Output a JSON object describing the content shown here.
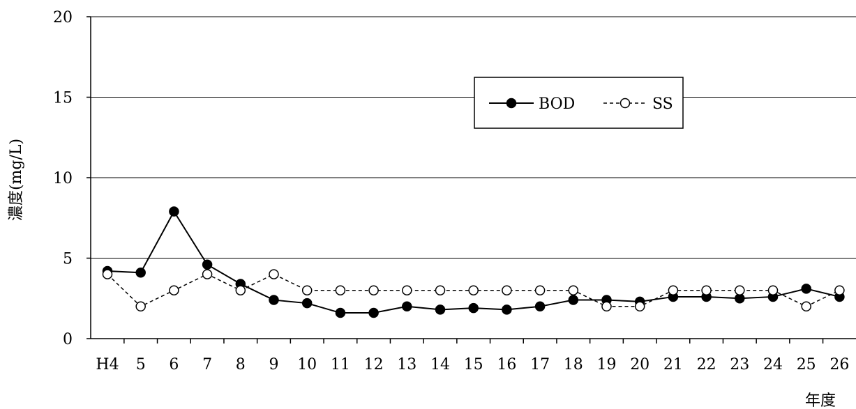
{
  "chart_data": {
    "type": "line",
    "categories": [
      "H4",
      "5",
      "6",
      "7",
      "8",
      "9",
      "10",
      "11",
      "12",
      "13",
      "14",
      "15",
      "16",
      "17",
      "18",
      "19",
      "20",
      "21",
      "22",
      "23",
      "24",
      "25",
      "26"
    ],
    "series": [
      {
        "name": "BOD",
        "color": "#000000",
        "line_style": "solid",
        "marker": "filled-circle",
        "values": [
          4.2,
          4.1,
          7.9,
          4.6,
          3.4,
          2.4,
          2.2,
          1.6,
          1.6,
          2.0,
          1.8,
          1.9,
          1.8,
          2.0,
          2.4,
          2.4,
          2.3,
          2.6,
          2.6,
          2.5,
          2.6,
          3.1,
          2.6
        ]
      },
      {
        "name": "SS",
        "color": "#000000",
        "line_style": "dashed",
        "marker": "open-circle",
        "values": [
          4.0,
          2.0,
          3.0,
          4.0,
          3.0,
          4.0,
          3.0,
          3.0,
          3.0,
          3.0,
          3.0,
          3.0,
          3.0,
          3.0,
          3.0,
          2.0,
          2.0,
          3.0,
          3.0,
          3.0,
          3.0,
          2.0,
          3.0
        ]
      }
    ],
    "ylabel": "濃度(mg/L)",
    "xlabel": "年度",
    "ylim": [
      0,
      20
    ],
    "yticks": [
      0,
      5,
      10,
      15,
      20
    ],
    "grid": "horizontal",
    "legend_position": "upper-right"
  }
}
